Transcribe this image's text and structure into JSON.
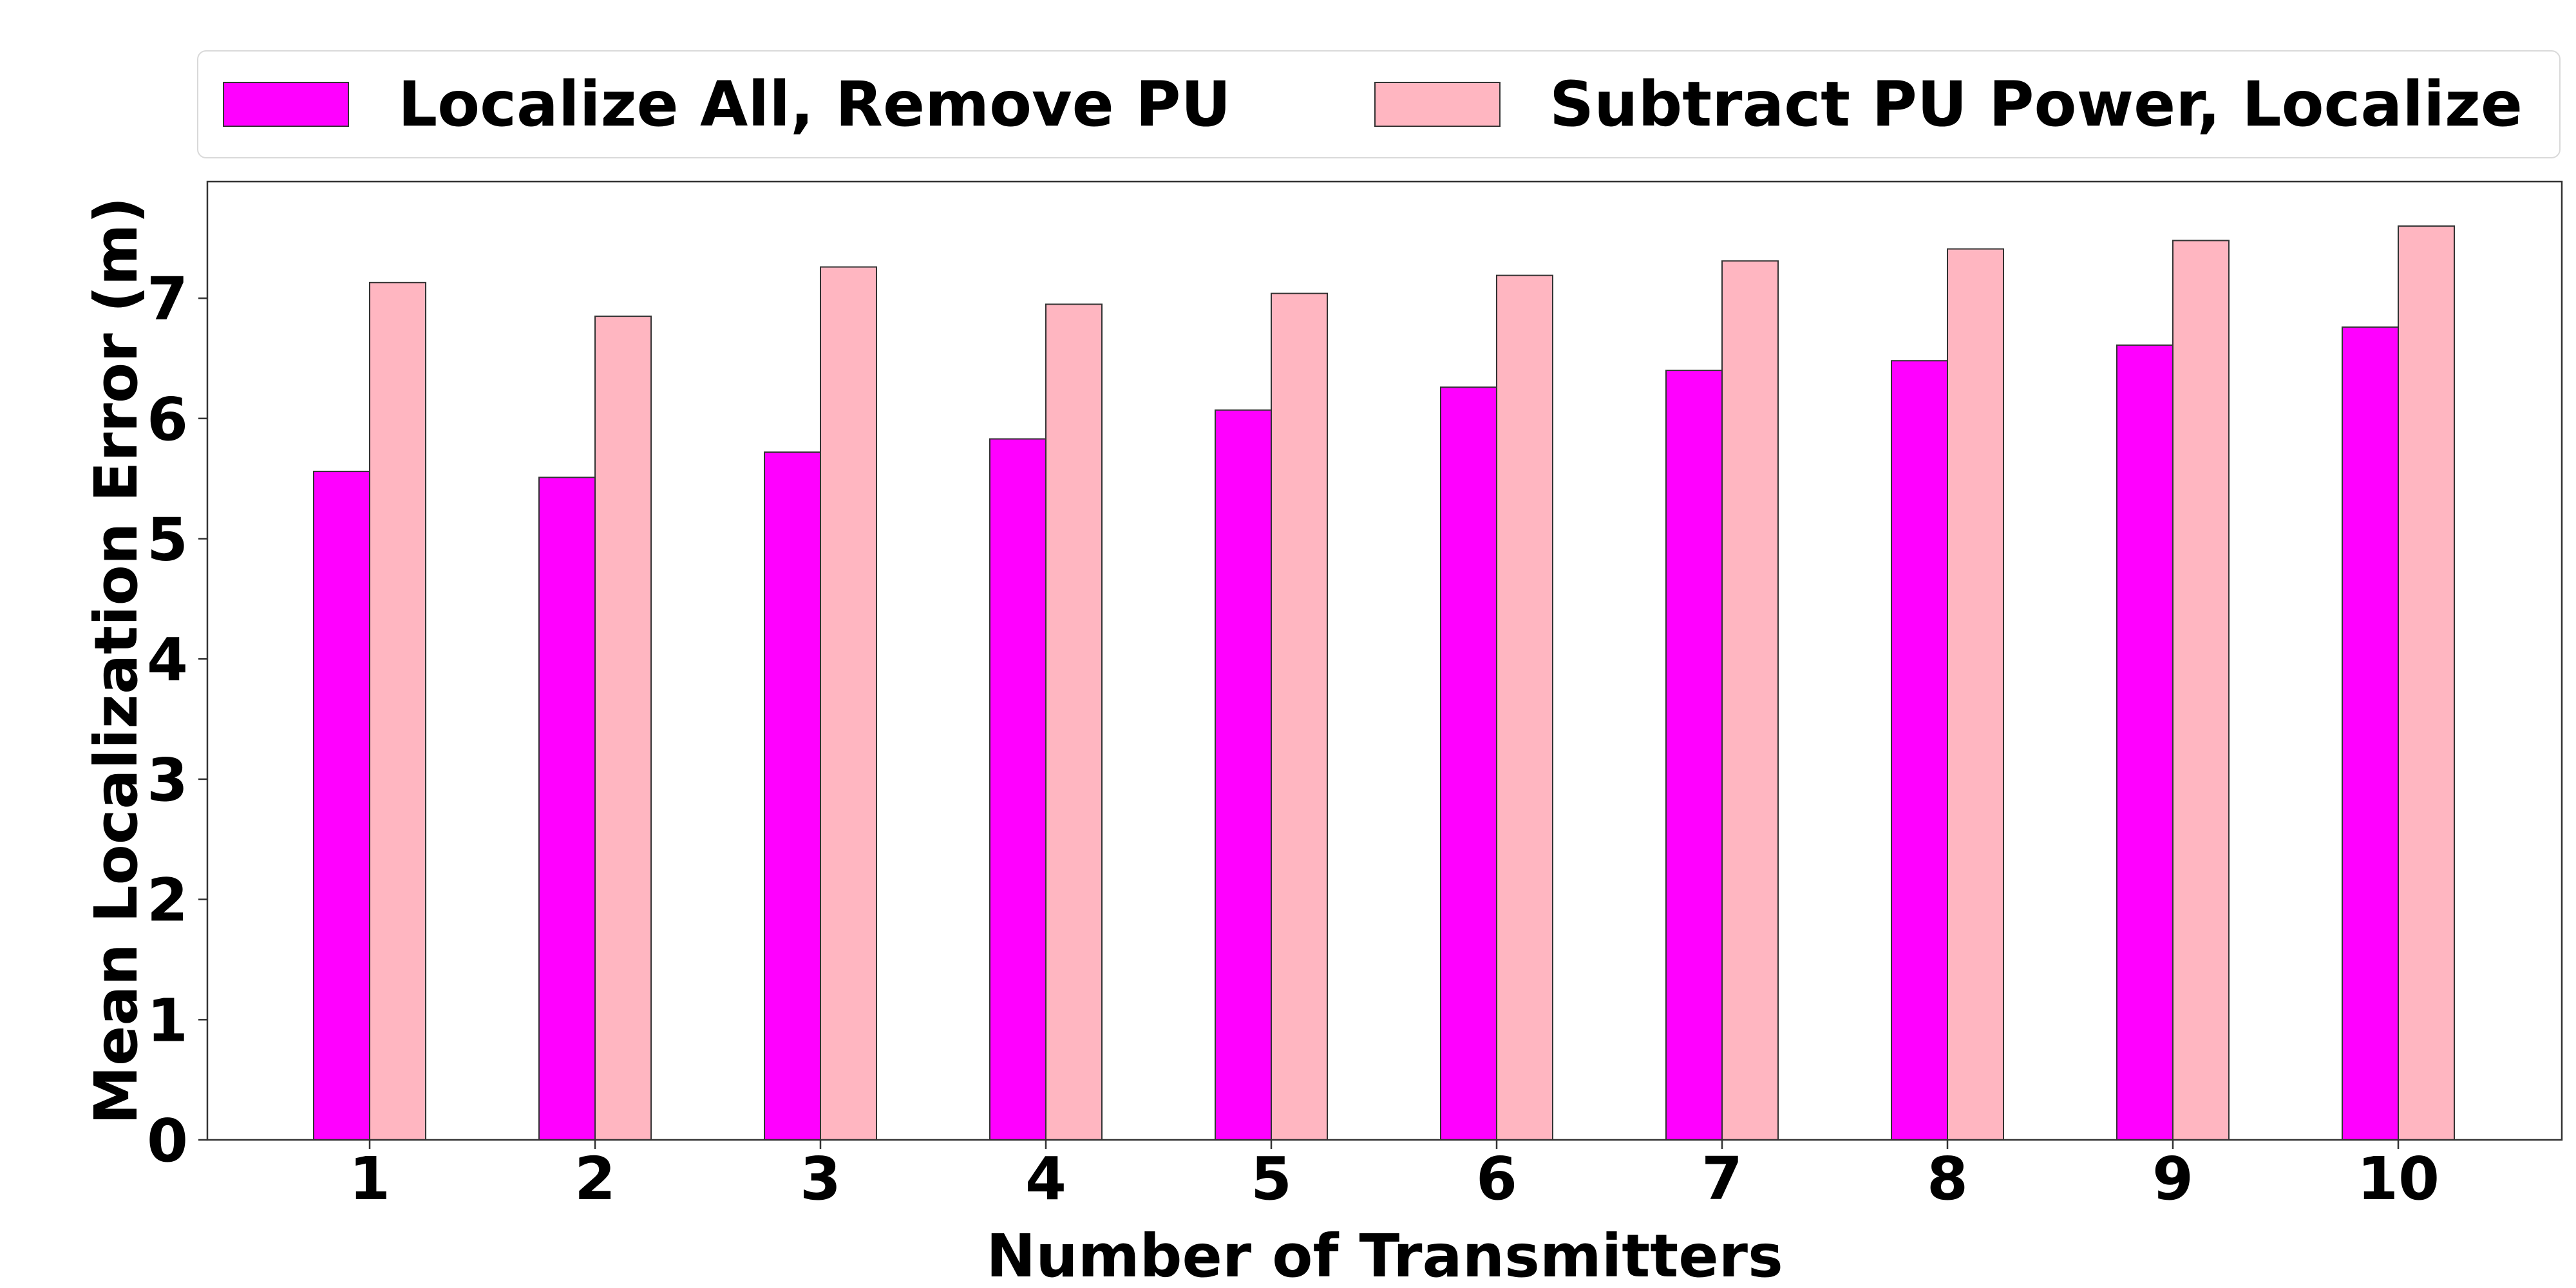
{
  "chart_data": {
    "type": "bar",
    "title": "",
    "xlabel": "Number of Transmitters",
    "ylabel": "Mean Localization Error (m)",
    "categories": [
      "1",
      "2",
      "3",
      "4",
      "5",
      "6",
      "7",
      "8",
      "9",
      "10"
    ],
    "yticks": [
      "0",
      "1",
      "2",
      "3",
      "4",
      "5",
      "6",
      "7"
    ],
    "ylim": [
      0,
      7.97
    ],
    "grid": false,
    "legend_position": "top",
    "series": [
      {
        "name": "Localize All, Remove PU",
        "color": "#ff00ff",
        "values": [
          5.56,
          5.51,
          5.72,
          5.83,
          6.07,
          6.26,
          6.4,
          6.48,
          6.61,
          6.76
        ]
      },
      {
        "name": "Subtract PU Power, Localize",
        "color": "#ffb6c1",
        "values": [
          7.13,
          6.85,
          7.26,
          6.95,
          7.04,
          7.19,
          7.31,
          7.41,
          7.48,
          7.6
        ]
      }
    ]
  }
}
